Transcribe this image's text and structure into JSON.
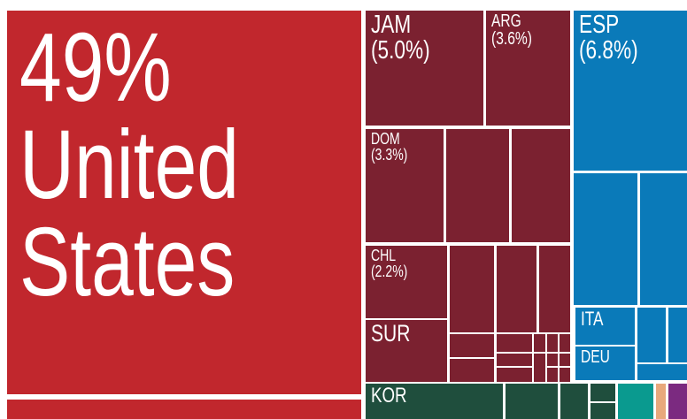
{
  "chart_data": {
    "type": "treemap",
    "categories": [
      "United States",
      "JAM",
      "ARG",
      "ESP",
      "DOM",
      "CHL",
      "SUR",
      "ITA",
      "DEU",
      "KOR"
    ],
    "values": [
      49,
      5.0,
      3.6,
      6.8,
      3.3,
      2.2,
      1.8,
      0.8,
      0.7,
      1.7
    ],
    "value_labels": [
      "49%",
      "(5.0%)",
      "(3.6%)",
      "(6.8%)",
      "(3.3%)",
      "(2.2%)",
      null,
      null,
      null,
      null
    ],
    "colors": [
      "#c1272d",
      "#7b2130",
      "#7b2130",
      "#0a7ab9",
      "#7b2130",
      "#7b2130",
      "#7b2130",
      "#0a7ab9",
      "#0a7ab9",
      "#1f4e3d"
    ]
  }
}
